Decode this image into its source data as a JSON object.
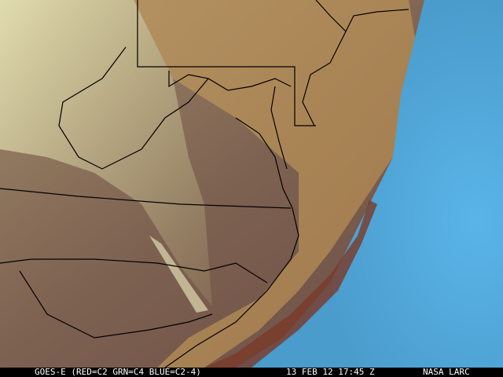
{
  "caption": {
    "satellite": "GOES-E (RED=C2 GRN=C4 BLUE=C2-4)",
    "datetime": "13 FEB 12 17:45 Z",
    "source": "NASA LARC"
  },
  "colors": {
    "land": "#8a6a50",
    "haze": "#b08a58",
    "ocean": "#4fa6d8",
    "cloud": "#e6e2a0",
    "coastal_water": "#7a3a28",
    "borders": "#000000"
  }
}
